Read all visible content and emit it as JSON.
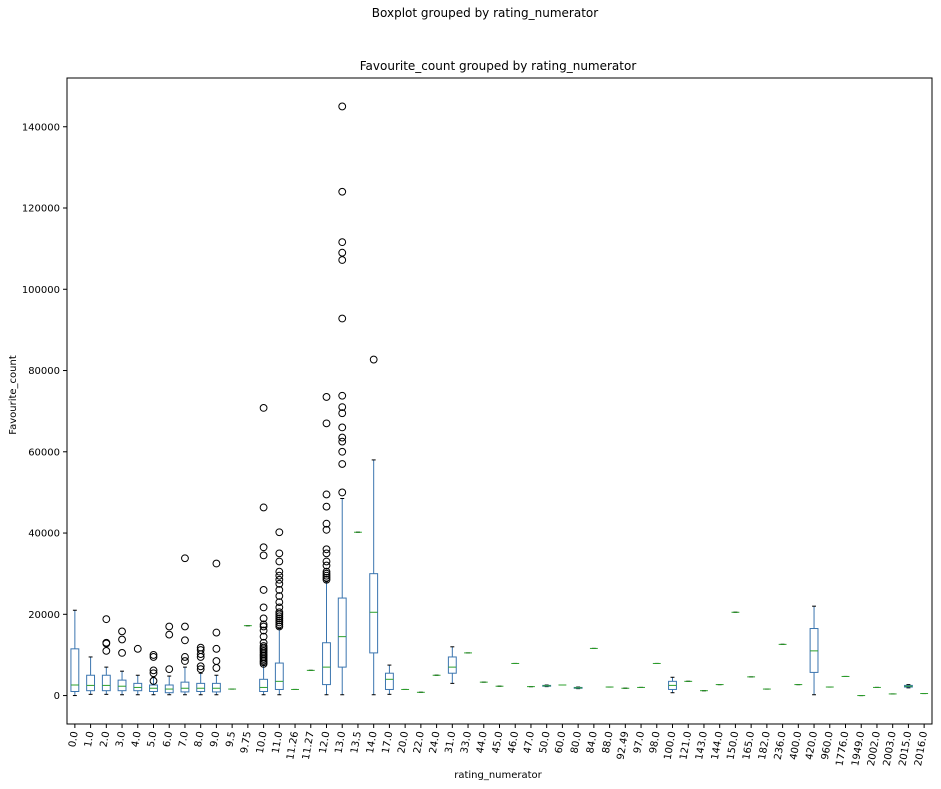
{
  "chart_data": {
    "type": "box",
    "suptitle": "Boxplot grouped by rating_numerator",
    "title": "Favourite_count grouped by rating_numerator",
    "xlabel": "rating_numerator",
    "ylabel": "Favourite_count",
    "ylim": [
      -7000,
      152000
    ],
    "yticks": [
      0,
      20000,
      40000,
      60000,
      80000,
      100000,
      120000,
      140000
    ],
    "grid": false,
    "colors": {
      "box": "#3b75af",
      "median": "#2ca02c",
      "flier": "#000000"
    },
    "categories": [
      "0.0",
      "1.0",
      "2.0",
      "3.0",
      "4.0",
      "5.0",
      "6.0",
      "7.0",
      "8.0",
      "9.0",
      "9.5",
      "9.75",
      "10.0",
      "11.0",
      "11.26",
      "11.27",
      "12.0",
      "13.0",
      "13.5",
      "14.0",
      "17.0",
      "20.0",
      "22.0",
      "24.0",
      "31.0",
      "33.0",
      "44.0",
      "45.0",
      "46.0",
      "47.0",
      "50.0",
      "60.0",
      "80.0",
      "84.0",
      "88.0",
      "92.49",
      "97.0",
      "98.0",
      "100.0",
      "121.0",
      "143.0",
      "144.0",
      "150.0",
      "165.0",
      "182.0",
      "236.0",
      "400.0",
      "420.0",
      "960.0",
      "1776.0",
      "1949.0",
      "2002.0",
      "2003.0",
      "2015.0",
      "2016.0"
    ],
    "boxes": [
      {
        "whislo": 0,
        "q1": 1000,
        "med": 2600,
        "q3": 11500,
        "whishi": 21000,
        "fliers": []
      },
      {
        "whislo": 300,
        "q1": 1200,
        "med": 2500,
        "q3": 5000,
        "whishi": 9500,
        "fliers": []
      },
      {
        "whislo": 300,
        "q1": 1200,
        "med": 2500,
        "q3": 5000,
        "whishi": 7000,
        "fliers": [
          11000,
          12800,
          13000,
          18800
        ]
      },
      {
        "whislo": 200,
        "q1": 1200,
        "med": 2300,
        "q3": 3800,
        "whishi": 6000,
        "fliers": [
          10500,
          13800,
          15800
        ]
      },
      {
        "whislo": 200,
        "q1": 1200,
        "med": 2000,
        "q3": 3000,
        "whishi": 5000,
        "fliers": [
          11500
        ]
      },
      {
        "whislo": 200,
        "q1": 1000,
        "med": 1800,
        "q3": 2600,
        "whishi": 4500,
        "fliers": [
          3600,
          5500,
          6200,
          9500,
          10000
        ]
      },
      {
        "whislo": 200,
        "q1": 700,
        "med": 1600,
        "q3": 2600,
        "whishi": 4800,
        "fliers": [
          6500,
          15000,
          17000
        ]
      },
      {
        "whislo": 200,
        "q1": 900,
        "med": 1800,
        "q3": 3300,
        "whishi": 7000,
        "fliers": [
          8500,
          9500,
          13600,
          17000,
          33800
        ]
      },
      {
        "whislo": 200,
        "q1": 1000,
        "med": 1800,
        "q3": 3000,
        "whishi": 5500,
        "fliers": [
          6500,
          7200,
          9500,
          10200,
          11200,
          11800
        ]
      },
      {
        "whislo": 200,
        "q1": 900,
        "med": 1800,
        "q3": 3000,
        "whishi": 5000,
        "fliers": [
          6800,
          8500,
          11500,
          15500,
          32500
        ]
      },
      {
        "whislo": 1600,
        "q1": 1600,
        "med": 1600,
        "q3": 1600,
        "whishi": 1600,
        "fliers": []
      },
      {
        "whislo": 17200,
        "q1": 17200,
        "med": 17200,
        "q3": 17200,
        "whishi": 17200,
        "fliers": []
      },
      {
        "whislo": 200,
        "q1": 1000,
        "med": 2000,
        "q3": 4000,
        "whishi": 7500,
        "fliers": [
          7800,
          8200,
          8600,
          9000,
          9400,
          9800,
          10200,
          10600,
          11000,
          11400,
          11800,
          12200,
          13000,
          14500,
          16000,
          17000,
          17500,
          19000,
          21700,
          26000,
          34500,
          36500,
          46300,
          70800
        ]
      },
      {
        "whislo": 200,
        "q1": 1500,
        "med": 3500,
        "q3": 8000,
        "whishi": 16500,
        "fliers": [
          17000,
          17500,
          18000,
          18500,
          19000,
          19500,
          20000,
          20500,
          21700,
          23000,
          24500,
          26000,
          27500,
          28500,
          29500,
          30500,
          33000,
          35000,
          40200
        ]
      },
      {
        "whislo": 1500,
        "q1": 1500,
        "med": 1500,
        "q3": 1500,
        "whishi": 1500,
        "fliers": []
      },
      {
        "whislo": 6200,
        "q1": 6200,
        "med": 6200,
        "q3": 6200,
        "whishi": 6200,
        "fliers": []
      },
      {
        "whislo": 200,
        "q1": 2700,
        "med": 7000,
        "q3": 13000,
        "whishi": 28000,
        "fliers": [
          28500,
          29000,
          29500,
          30000,
          30500,
          32000,
          33000,
          35000,
          36000,
          40800,
          42300,
          46500,
          49500,
          67000,
          73500
        ]
      },
      {
        "whislo": 200,
        "q1": 7000,
        "med": 14500,
        "q3": 24000,
        "whishi": 48500,
        "fliers": [
          50000,
          57000,
          60000,
          62500,
          63500,
          66000,
          69500,
          71000,
          73800,
          92800,
          107200,
          109000,
          111600,
          124000,
          145000
        ]
      },
      {
        "whislo": 40200,
        "q1": 40200,
        "med": 40200,
        "q3": 40200,
        "whishi": 40200,
        "fliers": []
      },
      {
        "whislo": 200,
        "q1": 10500,
        "med": 20500,
        "q3": 30000,
        "whishi": 58000,
        "fliers": [
          82700
        ]
      },
      {
        "whislo": 300,
        "q1": 1500,
        "med": 4000,
        "q3": 5500,
        "whishi": 7500,
        "fliers": []
      },
      {
        "whislo": 1500,
        "q1": 1500,
        "med": 1500,
        "q3": 1500,
        "whishi": 1500,
        "fliers": []
      },
      {
        "whislo": 800,
        "q1": 800,
        "med": 800,
        "q3": 800,
        "whishi": 800,
        "fliers": []
      },
      {
        "whislo": 5000,
        "q1": 5000,
        "med": 5000,
        "q3": 5000,
        "whishi": 5000,
        "fliers": []
      },
      {
        "whislo": 3000,
        "q1": 5500,
        "med": 7000,
        "q3": 9500,
        "whishi": 12000,
        "fliers": []
      },
      {
        "whislo": 10500,
        "q1": 10500,
        "med": 10500,
        "q3": 10500,
        "whishi": 10500,
        "fliers": []
      },
      {
        "whislo": 3300,
        "q1": 3300,
        "med": 3300,
        "q3": 3300,
        "whishi": 3300,
        "fliers": []
      },
      {
        "whislo": 2300,
        "q1": 2300,
        "med": 2300,
        "q3": 2300,
        "whishi": 2300,
        "fliers": []
      },
      {
        "whislo": 7900,
        "q1": 7900,
        "med": 7900,
        "q3": 7900,
        "whishi": 7900,
        "fliers": []
      },
      {
        "whislo": 2200,
        "q1": 2200,
        "med": 2200,
        "q3": 2200,
        "whishi": 2200,
        "fliers": []
      },
      {
        "whislo": 2200,
        "q1": 2300,
        "med": 2400,
        "q3": 2500,
        "whishi": 2600,
        "fliers": []
      },
      {
        "whislo": 2600,
        "q1": 2600,
        "med": 2600,
        "q3": 2600,
        "whishi": 2600,
        "fliers": []
      },
      {
        "whislo": 1700,
        "q1": 1800,
        "med": 1900,
        "q3": 2000,
        "whishi": 2100,
        "fliers": []
      },
      {
        "whislo": 11600,
        "q1": 11600,
        "med": 11600,
        "q3": 11600,
        "whishi": 11600,
        "fliers": []
      },
      {
        "whislo": 2100,
        "q1": 2100,
        "med": 2100,
        "q3": 2100,
        "whishi": 2100,
        "fliers": []
      },
      {
        "whislo": 1800,
        "q1": 1800,
        "med": 1800,
        "q3": 1800,
        "whishi": 1800,
        "fliers": []
      },
      {
        "whislo": 2000,
        "q1": 2000,
        "med": 2000,
        "q3": 2000,
        "whishi": 2000,
        "fliers": []
      },
      {
        "whislo": 7900,
        "q1": 7900,
        "med": 7900,
        "q3": 7900,
        "whishi": 7900,
        "fliers": []
      },
      {
        "whislo": 700,
        "q1": 1500,
        "med": 2500,
        "q3": 3500,
        "whishi": 4500,
        "fliers": []
      },
      {
        "whislo": 3500,
        "q1": 3500,
        "med": 3500,
        "q3": 3500,
        "whishi": 3500,
        "fliers": []
      },
      {
        "whislo": 1200,
        "q1": 1200,
        "med": 1200,
        "q3": 1200,
        "whishi": 1200,
        "fliers": []
      },
      {
        "whislo": 2700,
        "q1": 2700,
        "med": 2700,
        "q3": 2700,
        "whishi": 2700,
        "fliers": []
      },
      {
        "whislo": 20500,
        "q1": 20500,
        "med": 20500,
        "q3": 20500,
        "whishi": 20500,
        "fliers": []
      },
      {
        "whislo": 4600,
        "q1": 4600,
        "med": 4600,
        "q3": 4600,
        "whishi": 4600,
        "fliers": []
      },
      {
        "whislo": 1600,
        "q1": 1600,
        "med": 1600,
        "q3": 1600,
        "whishi": 1600,
        "fliers": []
      },
      {
        "whislo": 12600,
        "q1": 12600,
        "med": 12600,
        "q3": 12600,
        "whishi": 12600,
        "fliers": []
      },
      {
        "whislo": 2700,
        "q1": 2700,
        "med": 2700,
        "q3": 2700,
        "whishi": 2700,
        "fliers": []
      },
      {
        "whislo": 200,
        "q1": 5700,
        "med": 11000,
        "q3": 16500,
        "whishi": 22000,
        "fliers": []
      },
      {
        "whislo": 2100,
        "q1": 2100,
        "med": 2100,
        "q3": 2100,
        "whishi": 2100,
        "fliers": []
      },
      {
        "whislo": 4700,
        "q1": 4700,
        "med": 4700,
        "q3": 4700,
        "whishi": 4700,
        "fliers": []
      },
      {
        "whislo": 0,
        "q1": 0,
        "med": 0,
        "q3": 0,
        "whishi": 0,
        "fliers": []
      },
      {
        "whislo": 2000,
        "q1": 2000,
        "med": 2000,
        "q3": 2000,
        "whishi": 2000,
        "fliers": []
      },
      {
        "whislo": 400,
        "q1": 400,
        "med": 400,
        "q3": 400,
        "whishi": 400,
        "fliers": []
      },
      {
        "whislo": 1900,
        "q1": 2100,
        "med": 2300,
        "q3": 2500,
        "whishi": 2700,
        "fliers": []
      },
      {
        "whislo": 500,
        "q1": 500,
        "med": 500,
        "q3": 500,
        "whishi": 500,
        "fliers": []
      }
    ]
  }
}
